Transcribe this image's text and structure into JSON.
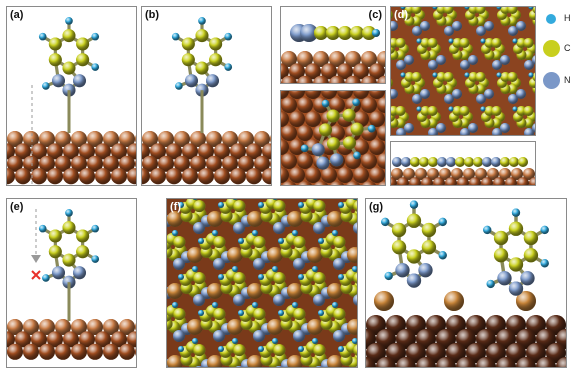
{
  "figure": {
    "panels": [
      {
        "id": "a",
        "label": "(a)"
      },
      {
        "id": "b",
        "label": "(b)"
      },
      {
        "id": "c",
        "label": "(c)"
      },
      {
        "id": "d",
        "label": "(d)"
      },
      {
        "id": "e",
        "label": "(e)"
      },
      {
        "id": "f",
        "label": "(f)"
      },
      {
        "id": "g",
        "label": "(g)"
      }
    ],
    "legend": [
      {
        "symbol": "H",
        "color": "#33aadd"
      },
      {
        "symbol": "C",
        "color": "#c8cf1e"
      },
      {
        "symbol": "N",
        "color": "#7b98c8"
      }
    ],
    "colors": {
      "copper": "#a24f22",
      "copper_dark": "#6f3216",
      "copper_light": "#c77a45",
      "carbon": "#c8cf1e",
      "nitrogen": "#7b98c8",
      "hydrogen": "#33aadd",
      "oxygen_marker": "#e8302a",
      "oxide_cu": "#c8853a",
      "dark_substrate": "#5a2c18"
    }
  }
}
